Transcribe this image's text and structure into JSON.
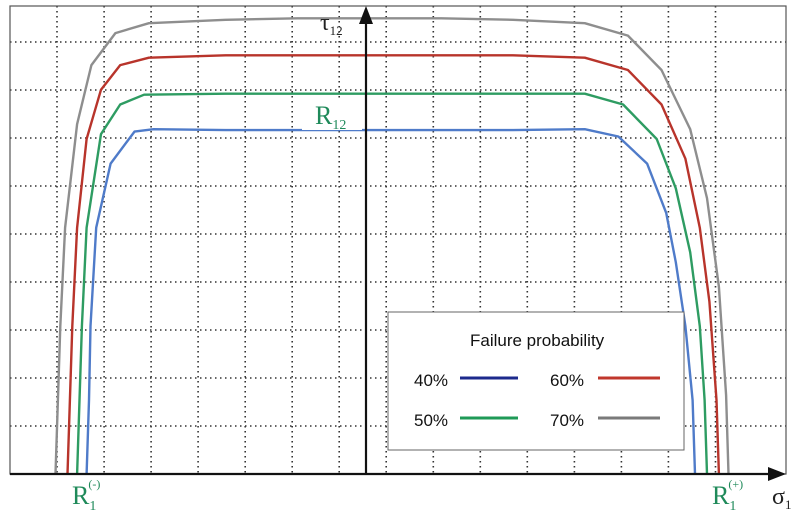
{
  "chart_data": {
    "type": "line",
    "title": "",
    "xlabel": "σ",
    "xlabel_sub": "1",
    "ylabel": "τ",
    "ylabel_sub": "12",
    "annotations": {
      "r12": {
        "main": "R",
        "sub": "12"
      },
      "r1_neg": {
        "main": "R",
        "sub": "1",
        "sup": "(-)"
      },
      "r1_pos": {
        "main": "R",
        "sub": "1",
        "sup": "(+)"
      }
    },
    "grid": true,
    "xlim": [
      -7.5,
      8.7
    ],
    "ylim": [
      0,
      9.5
    ],
    "legend": {
      "title": "Failure probability",
      "placement": "bottom-right",
      "entries": [
        {
          "label": "40%",
          "color": "#1c2a8c"
        },
        {
          "label": "60%",
          "color": "#c0372c"
        },
        {
          "label": "50%",
          "color": "#1f9a57"
        },
        {
          "label": "70%",
          "color": "#7a7a7a"
        }
      ]
    },
    "series": [
      {
        "name": "40%",
        "color": "#4f7bc9",
        "x": [
          -5.9,
          -5.85,
          -5.82,
          -5.7,
          -5.4,
          -4.9,
          -4.5,
          -3,
          -1.5,
          0,
          1.5,
          3,
          4.5,
          5.2,
          5.8,
          6.2,
          6.4,
          6.6,
          6.75,
          6.8
        ],
        "y": [
          0,
          1.5,
          3,
          5,
          6.3,
          6.95,
          7.0,
          6.98,
          6.98,
          6.98,
          6.98,
          6.98,
          7.0,
          6.85,
          6.3,
          5.3,
          4.3,
          3.0,
          1.5,
          0
        ]
      },
      {
        "name": "50%",
        "color": "#2e9c62",
        "x": [
          -6.1,
          -6.05,
          -6.0,
          -5.9,
          -5.6,
          -5.2,
          -4.7,
          -3,
          -1.5,
          0,
          1.5,
          3,
          4.5,
          5.3,
          6.0,
          6.4,
          6.7,
          6.9,
          7.0,
          7.05
        ],
        "y": [
          0,
          1.5,
          3,
          5,
          6.9,
          7.5,
          7.7,
          7.72,
          7.72,
          7.72,
          7.72,
          7.72,
          7.72,
          7.5,
          6.8,
          5.8,
          4.5,
          3.0,
          1.5,
          0
        ]
      },
      {
        "name": "60%",
        "color": "#b8342b",
        "x": [
          -6.3,
          -6.25,
          -6.2,
          -6.1,
          -5.9,
          -5.6,
          -5.2,
          -4.6,
          -3,
          -1.5,
          0,
          1.5,
          3,
          4.5,
          5.4,
          6.1,
          6.6,
          6.9,
          7.1,
          7.25,
          7.3
        ],
        "y": [
          0,
          1.5,
          3,
          5,
          6.8,
          7.8,
          8.3,
          8.45,
          8.5,
          8.5,
          8.5,
          8.5,
          8.5,
          8.45,
          8.2,
          7.5,
          6.4,
          5.0,
          3.5,
          1.5,
          0
        ]
      },
      {
        "name": "70%",
        "color": "#8e8e8e",
        "x": [
          -6.55,
          -6.5,
          -6.45,
          -6.35,
          -6.1,
          -5.8,
          -5.3,
          -4.6,
          -3,
          -1.5,
          0,
          1.5,
          3,
          4.5,
          5.4,
          6.1,
          6.7,
          7.05,
          7.3,
          7.45,
          7.5
        ],
        "y": [
          0,
          1.5,
          3,
          5,
          7.1,
          8.3,
          8.95,
          9.15,
          9.22,
          9.25,
          9.25,
          9.25,
          9.22,
          9.15,
          8.9,
          8.2,
          7.0,
          5.6,
          3.8,
          1.6,
          0
        ]
      }
    ]
  }
}
